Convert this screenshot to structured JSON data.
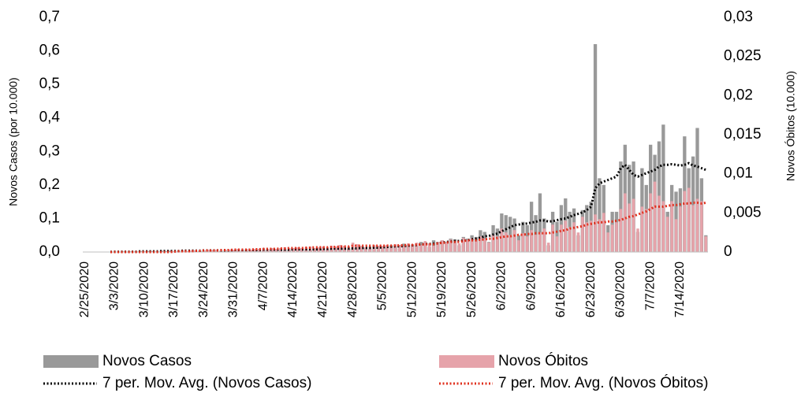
{
  "chart_data": {
    "type": "bar",
    "ylabel": "Novos Casos (por 10.000)",
    "y2label": "Novos Óbitos (10.000)",
    "ylim": [
      0,
      0.7
    ],
    "yticks": [
      {
        "value": 0,
        "label": "0,0"
      },
      {
        "value": 0.1,
        "label": "0,1"
      },
      {
        "value": 0.2,
        "label": "0,2"
      },
      {
        "value": 0.3,
        "label": "0,3"
      },
      {
        "value": 0.4,
        "label": "0,4"
      },
      {
        "value": 0.5,
        "label": "0,5"
      },
      {
        "value": 0.6,
        "label": "0,6"
      },
      {
        "value": 0.7,
        "label": "0,7"
      }
    ],
    "y2lim": [
      0,
      0.03
    ],
    "y2ticks": [
      0,
      {
        "value": 0.005,
        "label": "0,005"
      },
      {
        "value": 0.01,
        "label": "0,01"
      },
      {
        "value": 0.015,
        "label": "0,015"
      },
      {
        "value": 0.02,
        "label": "0,02"
      },
      {
        "value": 0.025,
        "label": "0,025"
      },
      {
        "value": 0.03,
        "label": "0,03"
      }
    ],
    "categories": [
      "2/25/2020",
      null,
      null,
      null,
      null,
      null,
      null,
      "3/3/2020",
      null,
      null,
      null,
      null,
      null,
      null,
      "3/10/2020",
      null,
      null,
      null,
      null,
      null,
      null,
      "3/17/2020",
      null,
      null,
      null,
      null,
      null,
      null,
      "3/24/2020",
      null,
      null,
      null,
      null,
      null,
      null,
      "3/31/2020",
      null,
      null,
      null,
      null,
      null,
      null,
      "4/7/2020",
      null,
      null,
      null,
      null,
      null,
      null,
      "4/14/2020",
      null,
      null,
      null,
      null,
      null,
      null,
      "4/21/2020",
      null,
      null,
      null,
      null,
      null,
      null,
      "4/28/2020",
      null,
      null,
      null,
      null,
      null,
      null,
      "5/5/2020",
      null,
      null,
      null,
      null,
      null,
      null,
      "5/12/2020",
      null,
      null,
      null,
      null,
      null,
      null,
      "5/19/2020",
      null,
      null,
      null,
      null,
      null,
      null,
      "5/26/2020",
      null,
      null,
      null,
      null,
      null,
      null,
      "6/2/2020",
      null,
      null,
      null,
      null,
      null,
      null,
      "6/9/2020",
      null,
      null,
      null,
      null,
      null,
      null,
      "6/16/2020",
      null,
      null,
      null,
      null,
      null,
      null,
      "6/23/2020",
      null,
      null,
      null,
      null,
      null,
      null,
      "6/30/2020",
      null,
      null,
      null,
      null,
      null,
      null,
      "7/7/2020",
      null,
      null,
      null,
      null,
      null,
      null,
      "7/14/2020",
      null,
      null,
      null,
      null,
      null,
      null
    ],
    "series": [
      {
        "name": "Novos Casos",
        "type": "bar",
        "axis": "y",
        "color": "#999999",
        "values": [
          0,
          0,
          0,
          0,
          0,
          0,
          0.001,
          0.001,
          0.001,
          0.002,
          0.001,
          0.002,
          0.002,
          0.003,
          0.002,
          0.003,
          0.003,
          0.002,
          0.004,
          0.003,
          0.004,
          0.003,
          0.004,
          0.005,
          0.003,
          0.004,
          0.005,
          0.004,
          0.005,
          0.004,
          0.006,
          0.005,
          0.004,
          0.006,
          0.005,
          0.006,
          0.005,
          0.007,
          0.006,
          0.005,
          0.007,
          0.006,
          0.007,
          0.006,
          0.008,
          0.007,
          0.006,
          0.008,
          0.007,
          0.008,
          0.007,
          0.009,
          0.008,
          0.006,
          0.009,
          0.008,
          0.009,
          0.008,
          0.012,
          0.01,
          0.007,
          0.011,
          0.01,
          0.012,
          0.01,
          0.014,
          0.012,
          0.009,
          0.016,
          0.014,
          0.015,
          0.012,
          0.02,
          0.018,
          0.01,
          0.025,
          0.02,
          0.022,
          0.018,
          0.03,
          0.026,
          0.015,
          0.035,
          0.03,
          0.035,
          0.03,
          0.04,
          0.038,
          0.02,
          0.045,
          0.04,
          0.05,
          0.045,
          0.065,
          0.06,
          0.03,
          0.08,
          0.07,
          0.115,
          0.11,
          0.105,
          0.1,
          0.05,
          0.09,
          0.08,
          0.15,
          0.11,
          0.175,
          0.1,
          0.02,
          0.12,
          0.09,
          0.14,
          0.16,
          0.12,
          0.13,
          0.05,
          0.125,
          0.14,
          0.15,
          0.62,
          0.22,
          0.2,
          0.08,
          0.12,
          0.12,
          0.27,
          0.32,
          0.26,
          0.27,
          0.06,
          0.25,
          0.2,
          0.32,
          0.29,
          0.33,
          0.38,
          0.12,
          0.2,
          0.18,
          0.19,
          0.345,
          0.25,
          0.285,
          0.37,
          0.22,
          0.05
        ]
      },
      {
        "name": "Novos Óbitos",
        "type": "bar",
        "axis": "y2",
        "color": "#e6a3aa",
        "values": [
          0,
          0,
          0,
          0,
          0,
          0,
          0,
          0,
          0,
          0,
          0,
          0,
          0,
          0,
          0,
          0,
          0,
          0,
          0,
          0,
          0,
          0.0001,
          0.0001,
          0.0002,
          0.0001,
          0.0002,
          0.0002,
          0.0001,
          0.0002,
          0.0003,
          0.0002,
          0.0003,
          0.0002,
          0.0003,
          0.0003,
          0.0003,
          0.0004,
          0.0003,
          0.0004,
          0.0003,
          0.0004,
          0.0004,
          0.0005,
          0.0004,
          0.0005,
          0.0004,
          0.0005,
          0.0006,
          0.0005,
          0.0005,
          0.0006,
          0.0005,
          0.0006,
          0.0007,
          0.0005,
          0.0006,
          0.0007,
          0.0006,
          0.0008,
          0.0007,
          0.0009,
          0.0008,
          0.0007,
          0.0012,
          0.001,
          0.0008,
          0.0006,
          0.0007,
          0.0009,
          0.0008,
          0.0008,
          0.0009,
          0.0006,
          0.001,
          0.0009,
          0.0007,
          0.0011,
          0.001,
          0.0012,
          0.0009,
          0.0014,
          0.0011,
          0.0008,
          0.0013,
          0.0015,
          0.0012,
          0.0016,
          0.0014,
          0.0011,
          0.0018,
          0.0016,
          0.0018,
          0.0015,
          0.002,
          0.0017,
          0.0012,
          0.0022,
          0.002,
          0.003,
          0.0025,
          0.0022,
          0.0028,
          0.0015,
          0.0024,
          0.002,
          0.0028,
          0.0022,
          0.0025,
          0.003,
          0.0012,
          0.0035,
          0.002,
          0.0035,
          0.004,
          0.0032,
          0.0038,
          0.0025,
          0.0045,
          0.0038,
          0.004,
          0.0048,
          0.0042,
          0.005,
          0.0025,
          0.0035,
          0.0038,
          0.0055,
          0.0075,
          0.0062,
          0.0068,
          0.003,
          0.0058,
          0.0055,
          0.0075,
          0.009,
          0.0072,
          0.0065,
          0.0045,
          0.0065,
          0.0042,
          0.0058,
          0.0078,
          0.0082,
          0.006,
          0.0068,
          0.0065,
          0.002
        ]
      },
      {
        "name": "7 per. Mov. Avg. (Novos Casos)",
        "type": "line",
        "axis": "y",
        "color": "#000000",
        "values": [
          null,
          null,
          null,
          null,
          null,
          null,
          0.0005,
          0.001,
          0.001,
          0.001,
          0.001,
          0.001,
          0.001,
          0.002,
          0.002,
          0.002,
          0.002,
          0.002,
          0.003,
          0.003,
          0.003,
          0.003,
          0.003,
          0.004,
          0.004,
          0.004,
          0.004,
          0.004,
          0.005,
          0.005,
          0.005,
          0.005,
          0.005,
          0.005,
          0.005,
          0.006,
          0.006,
          0.006,
          0.006,
          0.006,
          0.006,
          0.006,
          0.007,
          0.007,
          0.007,
          0.007,
          0.007,
          0.007,
          0.007,
          0.008,
          0.008,
          0.008,
          0.008,
          0.008,
          0.008,
          0.008,
          0.009,
          0.009,
          0.01,
          0.01,
          0.01,
          0.01,
          0.01,
          0.011,
          0.011,
          0.012,
          0.012,
          0.012,
          0.013,
          0.013,
          0.014,
          0.015,
          0.016,
          0.017,
          0.017,
          0.018,
          0.019,
          0.02,
          0.021,
          0.023,
          0.024,
          0.024,
          0.025,
          0.026,
          0.028,
          0.03,
          0.031,
          0.033,
          0.033,
          0.034,
          0.035,
          0.038,
          0.04,
          0.043,
          0.047,
          0.048,
          0.052,
          0.055,
          0.062,
          0.068,
          0.074,
          0.08,
          0.082,
          0.084,
          0.085,
          0.088,
          0.09,
          0.094,
          0.094,
          0.091,
          0.092,
          0.095,
          0.098,
          0.1,
          0.105,
          0.11,
          0.114,
          0.118,
          0.125,
          0.135,
          0.19,
          0.205,
          0.21,
          0.215,
          0.22,
          0.225,
          0.25,
          0.26,
          0.245,
          0.23,
          0.225,
          0.23,
          0.235,
          0.24,
          0.245,
          0.255,
          0.26,
          0.26,
          0.262,
          0.26,
          0.258,
          0.26,
          0.265,
          0.258,
          0.255,
          0.25,
          0.245
        ]
      },
      {
        "name": "7 per. Mov. Avg. (Novos Óbitos)",
        "type": "line",
        "axis": "y2",
        "color": "#e0301e",
        "values": [
          null,
          null,
          null,
          null,
          null,
          null,
          0,
          0,
          0,
          0,
          0,
          0,
          0,
          0,
          0,
          0,
          0,
          0,
          0,
          0,
          0,
          5e-05,
          0.0001,
          0.0001,
          0.0001,
          0.0001,
          0.00015,
          0.00015,
          0.0002,
          0.0002,
          0.0002,
          0.0002,
          0.00025,
          0.00025,
          0.00025,
          0.0003,
          0.0003,
          0.0003,
          0.0003,
          0.0003,
          0.00035,
          0.00035,
          0.0004,
          0.0004,
          0.0004,
          0.0004,
          0.00045,
          0.00045,
          0.0005,
          0.0005,
          0.0005,
          0.0005,
          0.00055,
          0.00055,
          0.0006,
          0.0006,
          0.0006,
          0.0006,
          0.00065,
          0.00065,
          0.0007,
          0.0007,
          0.0007,
          0.0008,
          0.0008,
          0.0008,
          0.0008,
          0.0008,
          0.0008,
          0.0008,
          0.0008,
          0.00082,
          0.00082,
          0.00083,
          0.00085,
          0.00085,
          0.0009,
          0.0009,
          0.00095,
          0.00095,
          0.001,
          0.001,
          0.001,
          0.0011,
          0.0012,
          0.0012,
          0.0013,
          0.0013,
          0.0013,
          0.0014,
          0.0015,
          0.0015,
          0.0015,
          0.0016,
          0.0016,
          0.0017,
          0.0017,
          0.0018,
          0.0019,
          0.002,
          0.002,
          0.0021,
          0.0022,
          0.0022,
          0.0023,
          0.0023,
          0.0024,
          0.0024,
          0.0024,
          0.0024,
          0.0025,
          0.0026,
          0.0027,
          0.0028,
          0.003,
          0.0031,
          0.0032,
          0.0033,
          0.0035,
          0.0036,
          0.0037,
          0.0038,
          0.0038,
          0.0039,
          0.0039,
          0.004,
          0.0041,
          0.0043,
          0.0045,
          0.0046,
          0.0048,
          0.005,
          0.0052,
          0.0055,
          0.0058,
          0.0058,
          0.0058,
          0.0059,
          0.006,
          0.006,
          0.0061,
          0.0062,
          0.0062,
          0.0063,
          0.0063,
          0.0062,
          0.0063
        ]
      }
    ]
  }
}
